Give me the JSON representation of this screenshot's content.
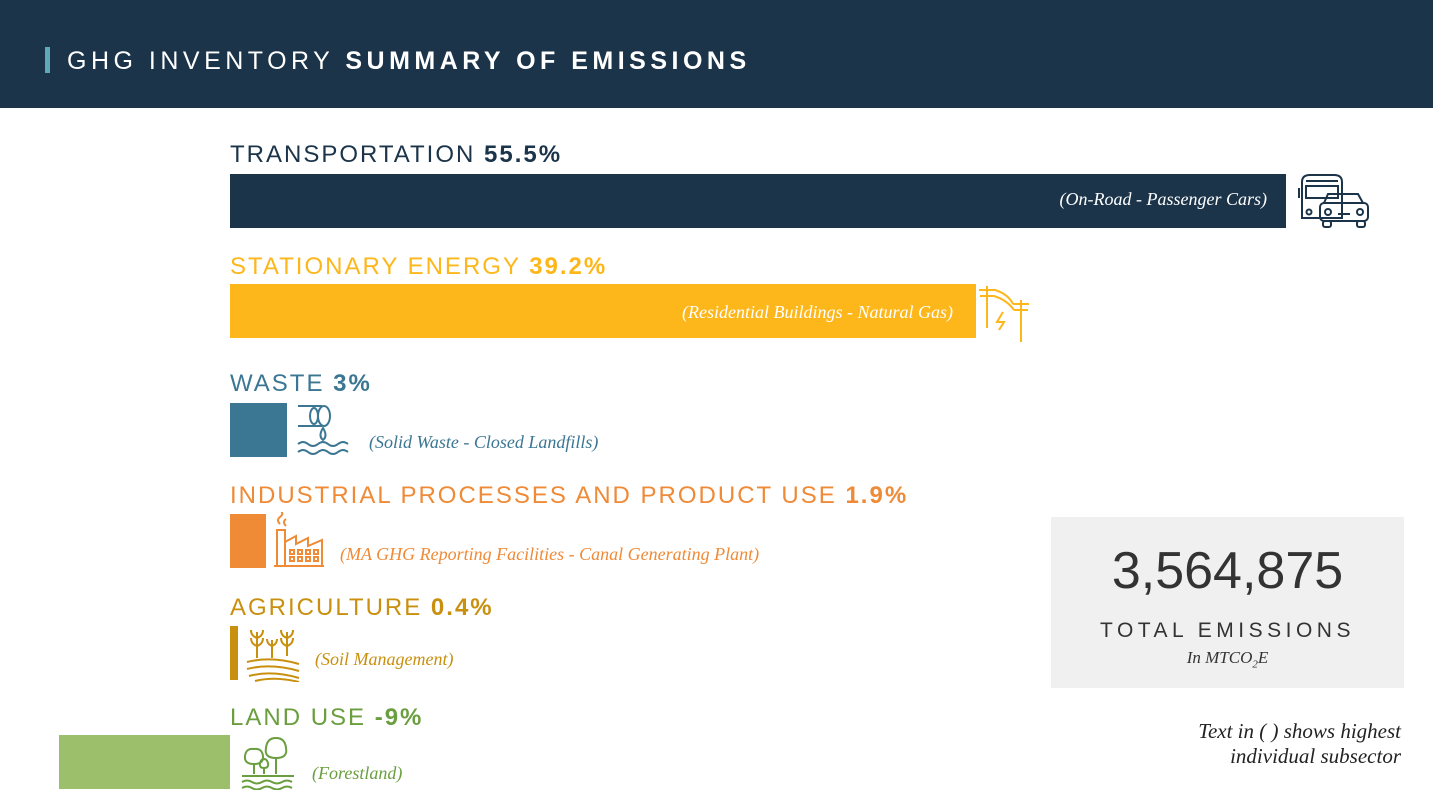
{
  "header": {
    "title_light": "GHG INVENTORY",
    "title_bold": "SUMMARY OF EMISSIONS"
  },
  "chart_data": {
    "type": "bar",
    "title": "GHG INVENTORY SUMMARY OF EMISSIONS",
    "categories": [
      "TRANSPORTATION",
      "STATIONARY ENERGY",
      "WASTE",
      "INDUSTRIAL PROCESSES AND PRODUCT USE",
      "AGRICULTURE",
      "LAND USE"
    ],
    "values": [
      55.5,
      39.2,
      3,
      1.9,
      0.4,
      -9
    ],
    "percent_labels": [
      "55.5%",
      "39.2%",
      "3%",
      "1.9%",
      "0.4%",
      "-9%"
    ],
    "subsectors": [
      "(On-Road - Passenger Cars)",
      "(Residential Buildings - Natural Gas)",
      "(Solid Waste - Closed Landfills)",
      "(MA GHG Reporting Facilities - Canal Generating Plant)",
      "(Soil Management)",
      "(Forestland)"
    ],
    "colors": [
      "#1b3449",
      "#fdb71a",
      "#3b7693",
      "#ef8a37",
      "#c9900f",
      "#9bbf6a"
    ],
    "icons": [
      "vehicles-icon",
      "power-lines-icon",
      "landfill-pipe-icon",
      "factory-icon",
      "crops-icon",
      "trees-icon"
    ]
  },
  "total": {
    "value": "3,564,875",
    "label": "TOTAL EMISSIONS",
    "unit_prefix": "In MTCO",
    "unit_sub": "2",
    "unit_suffix": "E"
  },
  "note": {
    "line1": "Text in ( ) shows highest",
    "line2": "individual subsector"
  }
}
